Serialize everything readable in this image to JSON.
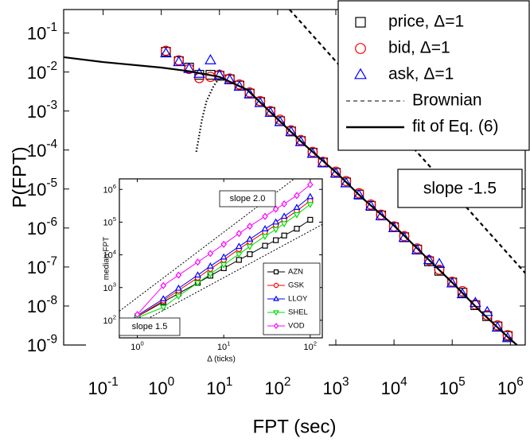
{
  "chart_data": [
    {
      "type": "scatter",
      "x_label": "FPT (sec)",
      "y_label": "P(FPT)",
      "xscale": "log",
      "yscale": "log",
      "xlim": [
        0.021,
        1800000
      ],
      "ylim": [
        1e-09,
        0.4
      ],
      "xticks": [
        {
          "value": 0.1,
          "label": "10^-1"
        },
        {
          "value": 1,
          "label": "10^0"
        },
        {
          "value": 10,
          "label": "10^1"
        },
        {
          "value": 100,
          "label": "10^2"
        },
        {
          "value": 1000,
          "label": "10^3"
        },
        {
          "value": 10000,
          "label": "10^4"
        },
        {
          "value": 100000,
          "label": "10^5"
        },
        {
          "value": 1000000,
          "label": "10^6"
        }
      ],
      "yticks": [
        {
          "value": 1e-09,
          "label": "10^-9"
        },
        {
          "value": 1e-08,
          "label": "10^-8"
        },
        {
          "value": 1e-07,
          "label": "10^-7"
        },
        {
          "value": 1e-06,
          "label": "10^-6"
        },
        {
          "value": 1e-05,
          "label": "10^-5"
        },
        {
          "value": 0.0001,
          "label": "10^-4"
        },
        {
          "value": 0.001,
          "label": "10^-3"
        },
        {
          "value": 0.01,
          "label": "10^-2"
        },
        {
          "value": 0.1,
          "label": "10^-1"
        }
      ],
      "legend": "upper right",
      "annotation": "slope -1.5",
      "series": [
        {
          "name": "price, Δ=1",
          "color": "#000000",
          "marker": "square",
          "mode": "markers",
          "x": [
            1.2,
            2,
            3,
            4.5,
            7,
            10,
            15,
            22,
            33,
            50,
            75,
            110,
            170,
            250,
            400,
            600,
            1000,
            1500,
            2500,
            4000,
            6000,
            10000,
            15000,
            25000,
            40000,
            60000,
            100000,
            150000,
            250000,
            400000,
            600000,
            900000
          ],
          "values": [
            0.033,
            0.019,
            0.013,
            0.0085,
            0.0085,
            0.008,
            0.0065,
            0.0045,
            0.0028,
            0.0017,
            0.00095,
            0.00055,
            0.0003,
            0.00017,
            8.5e-05,
            4.8e-05,
            2.6e-05,
            1.48e-05,
            7.2e-06,
            3.7e-06,
            2.1e-06,
            1.05e-06,
            5.8e-07,
            2.8e-07,
            1.4e-07,
            8e-08,
            4e-08,
            2.2e-08,
            1.05e-08,
            5.5e-09,
            3e-09,
            1.7e-09
          ]
        },
        {
          "name": "bid, Δ=1",
          "color": "#ff0000",
          "marker": "circle",
          "mode": "markers",
          "x": [
            1.2,
            2,
            3,
            4.5,
            7,
            10,
            15,
            22,
            33,
            50,
            75,
            110,
            170,
            250,
            400,
            600,
            1000,
            1500,
            2500,
            4000,
            6000,
            10000,
            15000,
            25000,
            40000,
            60000,
            100000,
            150000,
            250000,
            400000,
            600000,
            900000
          ],
          "values": [
            0.035,
            0.02,
            0.012,
            0.007,
            0.0075,
            0.0085,
            0.0068,
            0.0048,
            0.003,
            0.0018,
            0.001,
            0.0006,
            0.00032,
            0.00018,
            9e-05,
            5e-05,
            2.8e-05,
            1.6e-05,
            7.8e-06,
            4e-06,
            2.2e-06,
            1.1e-06,
            6.2e-07,
            3e-07,
            1.5e-07,
            8.5e-08,
            4.2e-08,
            2.4e-08,
            1.1e-08,
            5.8e-09,
            3.2e-09,
            1.8e-09
          ]
        },
        {
          "name": "ask, Δ=1",
          "color": "#0000ff",
          "marker": "triangle",
          "mode": "markers",
          "x": [
            1.2,
            2,
            3,
            4.5,
            7,
            10,
            15,
            22,
            33,
            50,
            75,
            110,
            170,
            250,
            400,
            600,
            1000,
            1500,
            2500,
            4000,
            6000,
            10000,
            15000,
            25000,
            40000,
            60000,
            100000,
            150000,
            250000,
            400000,
            600000,
            900000
          ],
          "values": [
            0.03,
            0.018,
            0.012,
            0.009,
            0.02,
            0.0082,
            0.0062,
            0.0042,
            0.0027,
            0.0016,
            0.0009,
            0.00052,
            0.00029,
            0.00016,
            8e-05,
            4.6e-05,
            2.5e-05,
            1.4e-05,
            7e-06,
            3.6e-06,
            2e-06,
            1e-06,
            5.6e-07,
            2.7e-07,
            1.5e-07,
            1.2e-07,
            3.8e-08,
            2e-08,
            1.2e-08,
            7e-09,
            2.8e-09,
            1.5e-09
          ]
        },
        {
          "name": "Brownian",
          "color": "#000000",
          "dash": "dashed",
          "mode": "lines",
          "x": [
            160,
            1800000
          ],
          "values": [
            0.4,
            7e-08
          ]
        },
        {
          "name": "fit of Eq. (6)",
          "color": "#000000",
          "dash": "solid",
          "mode": "lines",
          "x": [
            0.021,
            0.1,
            1,
            3,
            10,
            30,
            100,
            300,
            1000,
            3000,
            10000,
            30000,
            100000,
            300000,
            1000000,
            1300000
          ],
          "values": [
            0.024,
            0.018,
            0.013,
            0.0105,
            0.0075,
            0.0035,
            0.00062,
            0.00013,
            2.7e-05,
            5.5e-06,
            1.15e-06,
            2.3e-07,
            4e-08,
            7.5e-09,
            1.4e-09,
            1e-09
          ]
        },
        {
          "color": "#000000",
          "dash": "dotted",
          "mode": "lines",
          "x": [
            4,
            5,
            6,
            8,
            10
          ],
          "values": [
            9e-05,
            0.0006,
            0.0018,
            0.0045,
            0.007
          ]
        }
      ]
    },
    {
      "type": "scatter",
      "x_label": "Δ (ticks)",
      "y_label": "median FPT",
      "xscale": "log",
      "yscale": "log",
      "xlim": [
        0.62,
        138
      ],
      "ylim": [
        29,
        2100000
      ],
      "xticks": [
        {
          "value": 1,
          "label": "10^0"
        },
        {
          "value": 10,
          "label": "10^1"
        },
        {
          "value": 100,
          "label": "10^2"
        }
      ],
      "yticks": [
        {
          "value": 100,
          "label": "10^2"
        },
        {
          "value": 1000,
          "label": "10^3"
        },
        {
          "value": 10000,
          "label": "10^4"
        },
        {
          "value": 100000,
          "label": "10^5"
        },
        {
          "value": 1000000,
          "label": "10^6"
        }
      ],
      "legend": "lower right",
      "reference_lines": [
        {
          "label": "slope 2.0",
          "x": [
            0.62,
            138
          ],
          "values": [
            190,
            9400000
          ]
        },
        {
          "label": "slope 1.5",
          "x": [
            0.62,
            138
          ],
          "values": [
            38,
            85000
          ]
        }
      ],
      "series": [
        {
          "name": "AZN",
          "color": "#000000",
          "marker": "square",
          "mode": "lines+markers",
          "x": [
            1,
            2,
            3,
            5,
            7,
            10,
            15,
            20,
            30,
            40,
            50,
            70,
            100
          ],
          "values": [
            130,
            363,
            660,
            1400,
            2300,
            3900,
            7000,
            10500,
            19000,
            28000,
            39000,
            63000,
            118000
          ]
        },
        {
          "name": "GSK",
          "color": "#ff0000",
          "marker": "circle",
          "mode": "lines+markers",
          "x": [
            1,
            2,
            3,
            5,
            7,
            10,
            15,
            20,
            30,
            40,
            50,
            70,
            100
          ],
          "values": [
            130,
            400,
            820,
            2000,
            3700,
            7000,
            15000,
            25000,
            50000,
            82000,
            120000,
            220000,
            450000
          ]
        },
        {
          "name": "LLOY",
          "color": "#0000ff",
          "marker": "triangle",
          "mode": "lines+markers",
          "x": [
            1,
            2,
            3,
            5,
            7,
            10,
            15,
            20,
            30,
            40,
            50,
            70,
            100
          ],
          "values": [
            140,
            450,
            950,
            2400,
            4500,
            8500,
            18000,
            30000,
            62000,
            100000,
            150000,
            280000,
            600000
          ]
        },
        {
          "name": "SHEL",
          "color": "#00dd00",
          "marker": "triangle-down",
          "mode": "lines+markers",
          "x": [
            1,
            2,
            3,
            5,
            7,
            10,
            15,
            20,
            30,
            40,
            50,
            70,
            100
          ],
          "values": [
            120,
            250,
            550,
            1400,
            2600,
            5000,
            10500,
            18000,
            37000,
            60000,
            90000,
            170000,
            350000
          ]
        },
        {
          "name": "VOD",
          "color": "#ff00ff",
          "marker": "diamond",
          "mode": "lines+markers",
          "x": [
            1,
            2,
            3,
            5,
            7,
            10,
            15,
            20,
            30,
            40,
            50,
            70,
            100
          ],
          "values": [
            150,
            1150,
            2400,
            6000,
            11000,
            21000,
            45000,
            75000,
            150000,
            250000,
            360000,
            650000,
            1400000
          ]
        }
      ]
    }
  ]
}
